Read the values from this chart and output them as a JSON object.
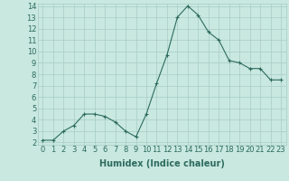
{
  "x": [
    0,
    1,
    2,
    3,
    4,
    5,
    6,
    7,
    8,
    9,
    10,
    11,
    12,
    13,
    14,
    15,
    16,
    17,
    18,
    19,
    20,
    21,
    22,
    23
  ],
  "y": [
    2.2,
    2.2,
    3.0,
    3.5,
    4.5,
    4.5,
    4.3,
    3.8,
    3.0,
    2.5,
    4.5,
    7.2,
    9.7,
    13.0,
    14.0,
    13.2,
    11.7,
    11.0,
    9.2,
    9.0,
    8.5,
    8.5,
    7.5,
    7.5
  ],
  "xlabel": "Humidex (Indice chaleur)",
  "xlim": [
    -0.5,
    23.5
  ],
  "ylim": [
    1.8,
    14.2
  ],
  "yticks": [
    2,
    3,
    4,
    5,
    6,
    7,
    8,
    9,
    10,
    11,
    12,
    13,
    14
  ],
  "xticks": [
    0,
    1,
    2,
    3,
    4,
    5,
    6,
    7,
    8,
    9,
    10,
    11,
    12,
    13,
    14,
    15,
    16,
    17,
    18,
    19,
    20,
    21,
    22,
    23
  ],
  "line_color": "#2e6b5e",
  "marker": "+",
  "axes_bg": "#c8e8e0",
  "grid_color": "#a8ccc4",
  "xlabel_fontsize": 7,
  "tick_fontsize": 6
}
